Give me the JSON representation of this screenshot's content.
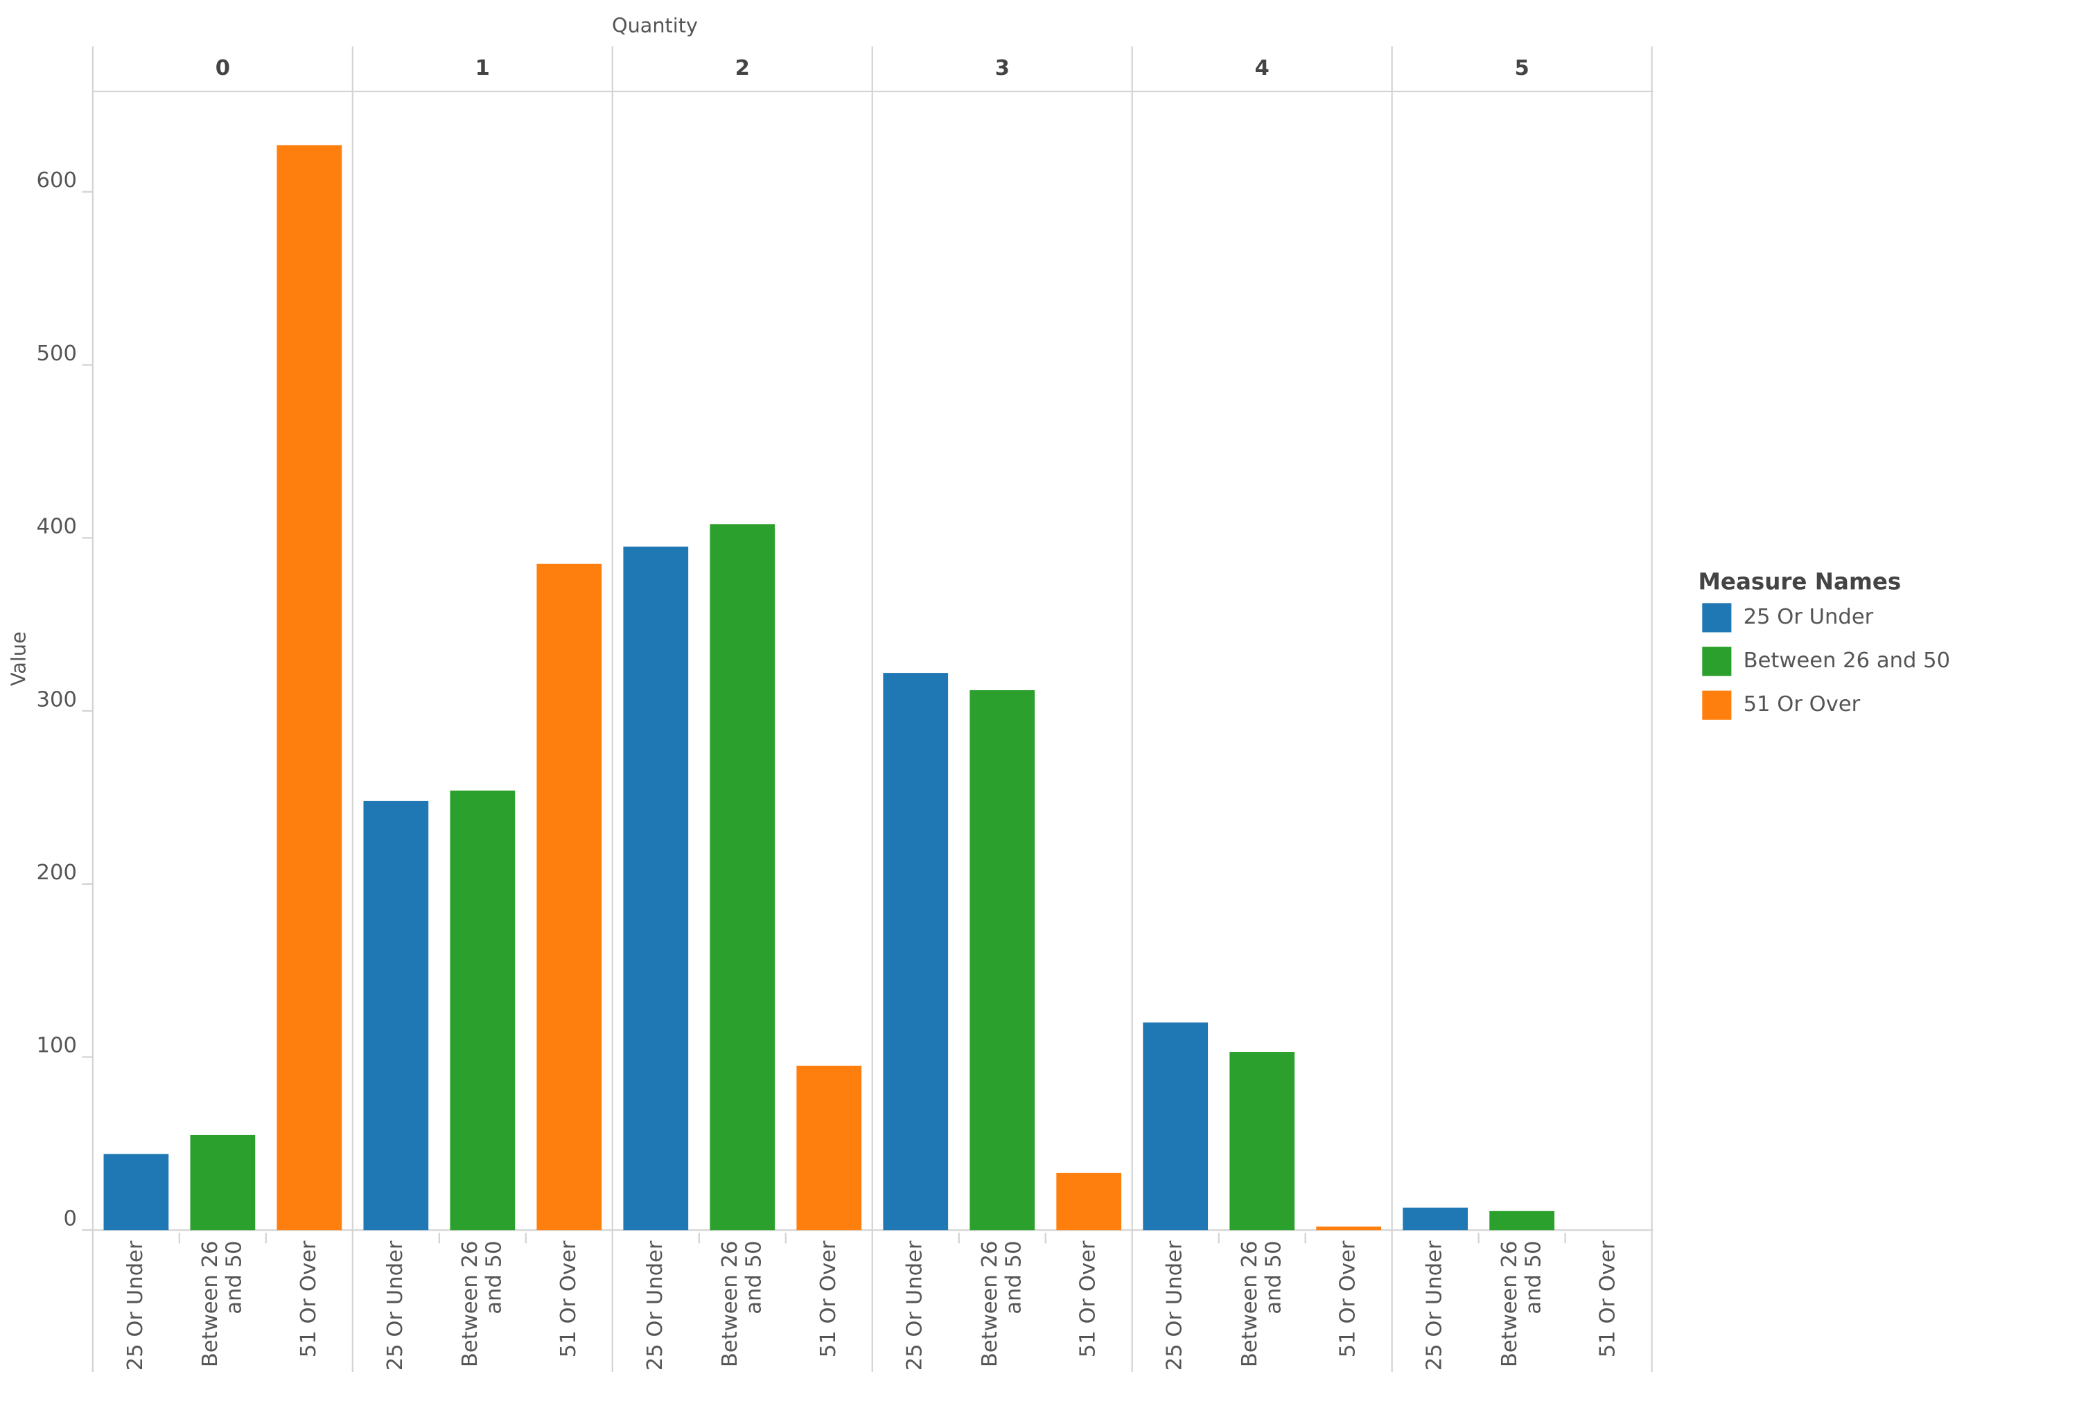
{
  "chart_data": {
    "type": "bar",
    "x_label": "Quantity",
    "y_label": "Value",
    "facets": [
      "0",
      "1",
      "2",
      "3",
      "4",
      "5"
    ],
    "legend_title": "Measure Names",
    "legend_position": "right",
    "series": [
      {
        "name": "25 Or Under",
        "color": "#1f77b4",
        "values": [
          44,
          248,
          395,
          322,
          120,
          13
        ]
      },
      {
        "name": "Between 26 and 50",
        "color": "#2ca02c",
        "values": [
          55,
          254,
          408,
          312,
          103,
          11
        ]
      },
      {
        "name": "51 Or Over",
        "color": "#ff7f0e",
        "values": [
          627,
          385,
          95,
          33,
          2,
          0
        ]
      }
    ],
    "ylim": [
      0,
      658
    ],
    "yticks": [
      0,
      100,
      200,
      300,
      400,
      500,
      600
    ],
    "grid": false
  }
}
